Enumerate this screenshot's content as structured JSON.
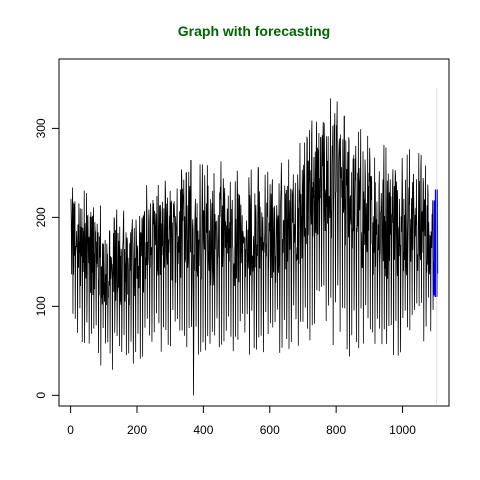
{
  "chart_data": {
    "type": "line",
    "title": "Graph with forecasting",
    "title_color": "#006400",
    "xlabel": "",
    "ylabel": "",
    "xlim": [
      -35,
      1140
    ],
    "ylim": [
      -12,
      378
    ],
    "x_ticks": [
      0,
      200,
      400,
      600,
      800,
      1000
    ],
    "y_ticks": [
      0,
      100,
      200,
      300
    ],
    "x_tick_labels": [
      "0",
      "200",
      "400",
      "600",
      "800",
      "1000"
    ],
    "y_tick_labels": [
      "0",
      "100",
      "200",
      "300"
    ],
    "grid": false,
    "legend": "none",
    "series": [
      {
        "color": "#000000",
        "line_width": 0.8,
        "x_start": 1,
        "x_end": 1096,
        "approx_envelope": [
          {
            "x": 1,
            "low": 62,
            "high": 255
          },
          {
            "x": 50,
            "low": 52,
            "high": 240
          },
          {
            "x": 100,
            "low": 28,
            "high": 215
          },
          {
            "x": 150,
            "low": 25,
            "high": 220
          },
          {
            "x": 200,
            "low": 35,
            "high": 230
          },
          {
            "x": 250,
            "low": 45,
            "high": 255
          },
          {
            "x": 300,
            "low": 45,
            "high": 260
          },
          {
            "x": 350,
            "low": 50,
            "high": 270
          },
          {
            "x": 370,
            "low": 0,
            "high": 275
          },
          {
            "x": 400,
            "low": 50,
            "high": 270
          },
          {
            "x": 450,
            "low": 35,
            "high": 270
          },
          {
            "x": 500,
            "low": 45,
            "high": 265
          },
          {
            "x": 550,
            "low": 45,
            "high": 265
          },
          {
            "x": 600,
            "low": 40,
            "high": 265
          },
          {
            "x": 650,
            "low": 45,
            "high": 270
          },
          {
            "x": 700,
            "low": 55,
            "high": 300
          },
          {
            "x": 750,
            "low": 60,
            "high": 350
          },
          {
            "x": 800,
            "low": 55,
            "high": 350
          },
          {
            "x": 850,
            "low": 35,
            "high": 320
          },
          {
            "x": 900,
            "low": 40,
            "high": 300
          },
          {
            "x": 950,
            "low": 40,
            "high": 295
          },
          {
            "x": 1000,
            "low": 45,
            "high": 290
          },
          {
            "x": 1050,
            "low": 55,
            "high": 285
          },
          {
            "x": 1096,
            "low": 70,
            "high": 250
          }
        ]
      },
      {
        "color": "#0000FF",
        "line_width": 3,
        "x_start": 1097,
        "x_end": 1103,
        "low": 110,
        "high": 232
      },
      {
        "color": "#D3D3D3",
        "line_width": 0.8,
        "x": 1103,
        "low": -10,
        "high": 345
      }
    ]
  }
}
